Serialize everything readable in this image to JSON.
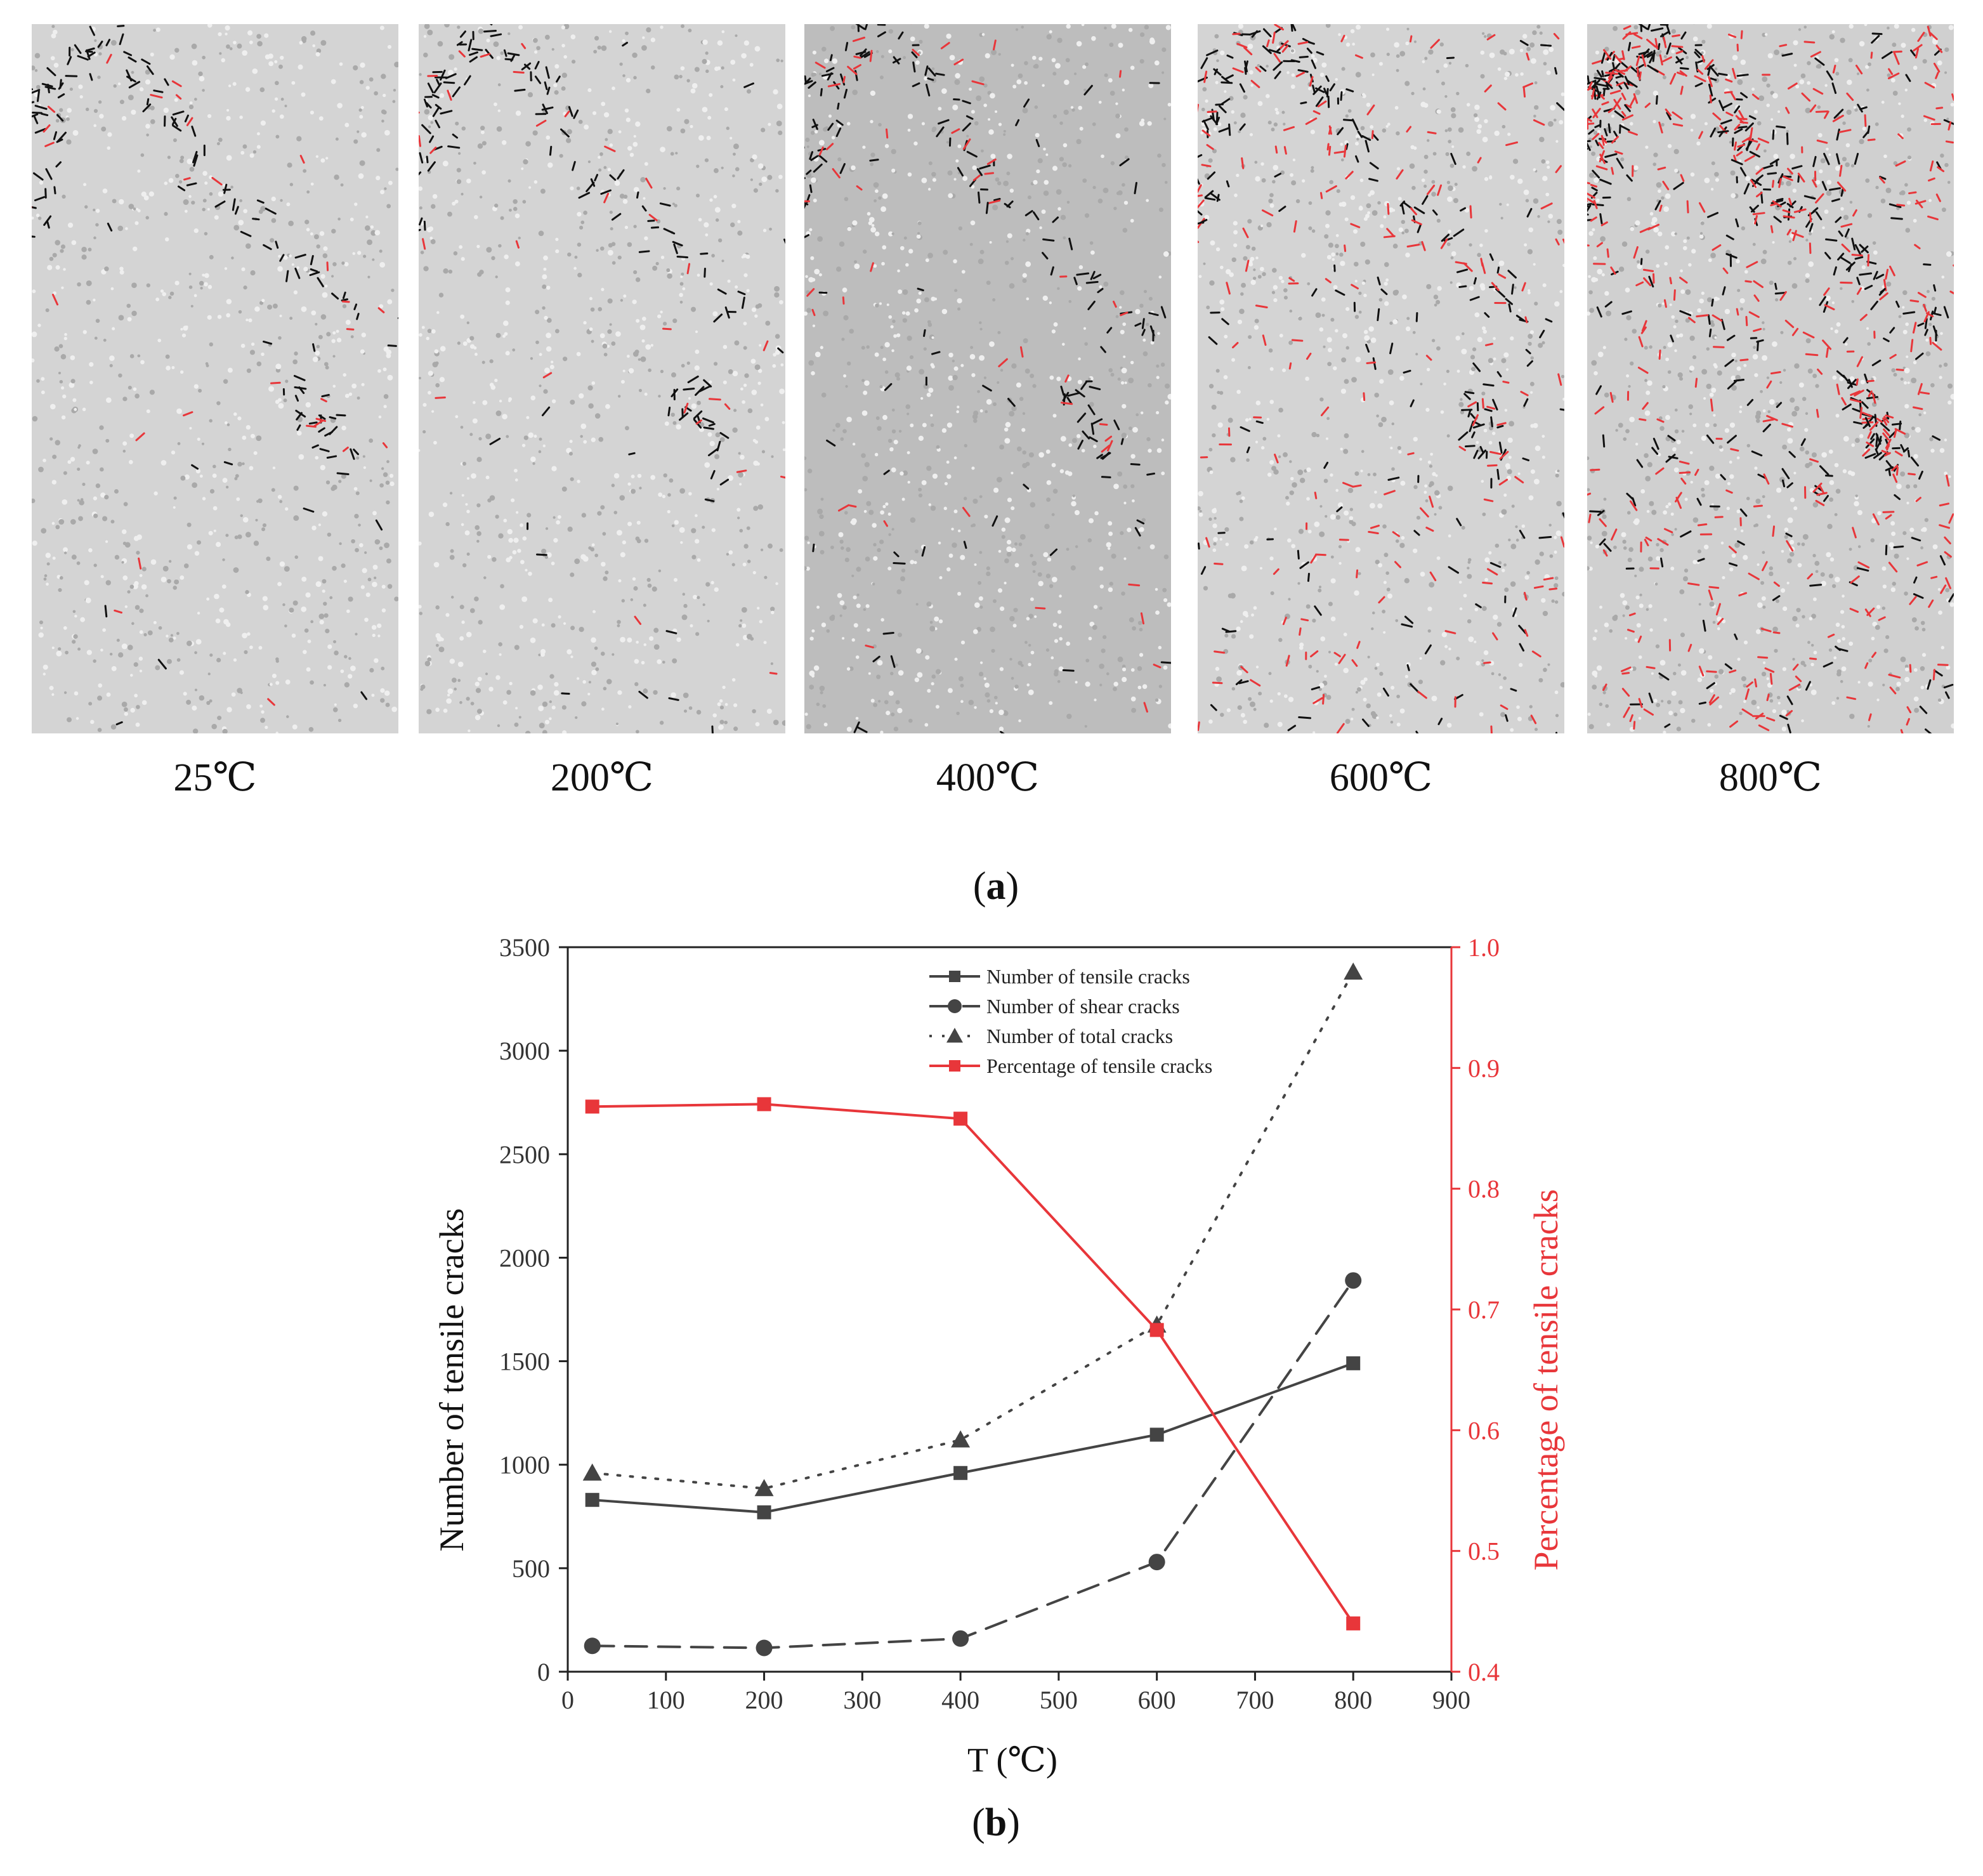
{
  "panel_a": {
    "label_open": "(",
    "label_letter": "a",
    "label_close": ")",
    "temperatures": [
      "25℃",
      "200℃",
      "400℃",
      "600℃",
      "800℃"
    ]
  },
  "panel_b": {
    "label_open": "(",
    "label_letter": "b",
    "label_close": ")"
  },
  "colors": {
    "tensile": "#444444",
    "shear": "#444444",
    "total": "#444444",
    "percentage": "#e8363a",
    "particles": "#c8c8c8",
    "crack_black": "#111111",
    "crack_red": "#e8363a"
  },
  "chart_data": {
    "type": "line",
    "xlabel": "T (℃)",
    "ylabel": "Number of tensile cracks",
    "y2label": "Percentage of tensile cracks",
    "x": [
      25,
      200,
      400,
      600,
      800
    ],
    "xlim": [
      0,
      900
    ],
    "xticks": [
      0,
      100,
      200,
      300,
      400,
      500,
      600,
      700,
      800,
      900
    ],
    "ylim": [
      0,
      3500
    ],
    "yticks": [
      0,
      500,
      1000,
      1500,
      2000,
      2500,
      3000,
      3500
    ],
    "y2lim": [
      0.4,
      1.0
    ],
    "y2ticks": [
      0.4,
      0.5,
      0.6,
      0.7,
      0.8,
      0.9,
      1.0
    ],
    "legend_position": "top-right",
    "series": [
      {
        "name": "Number of tensile cracks",
        "axis": "left",
        "marker": "square",
        "line": "solid",
        "color": "#444444",
        "values": [
          830,
          770,
          960,
          1145,
          1490
        ]
      },
      {
        "name": "Number of shear cracks",
        "axis": "left",
        "marker": "circle",
        "line": "dashed",
        "color": "#444444",
        "values": [
          125,
          115,
          160,
          530,
          1890
        ]
      },
      {
        "name": "Number of total cracks",
        "axis": "left",
        "marker": "triangle",
        "line": "dotted",
        "color": "#444444",
        "values": [
          960,
          885,
          1120,
          1675,
          3380
        ]
      },
      {
        "name": "Percentage of tensile cracks",
        "axis": "right",
        "marker": "square",
        "line": "solid",
        "color": "#e8363a",
        "values": [
          0.868,
          0.87,
          0.858,
          0.683,
          0.44
        ]
      }
    ]
  }
}
